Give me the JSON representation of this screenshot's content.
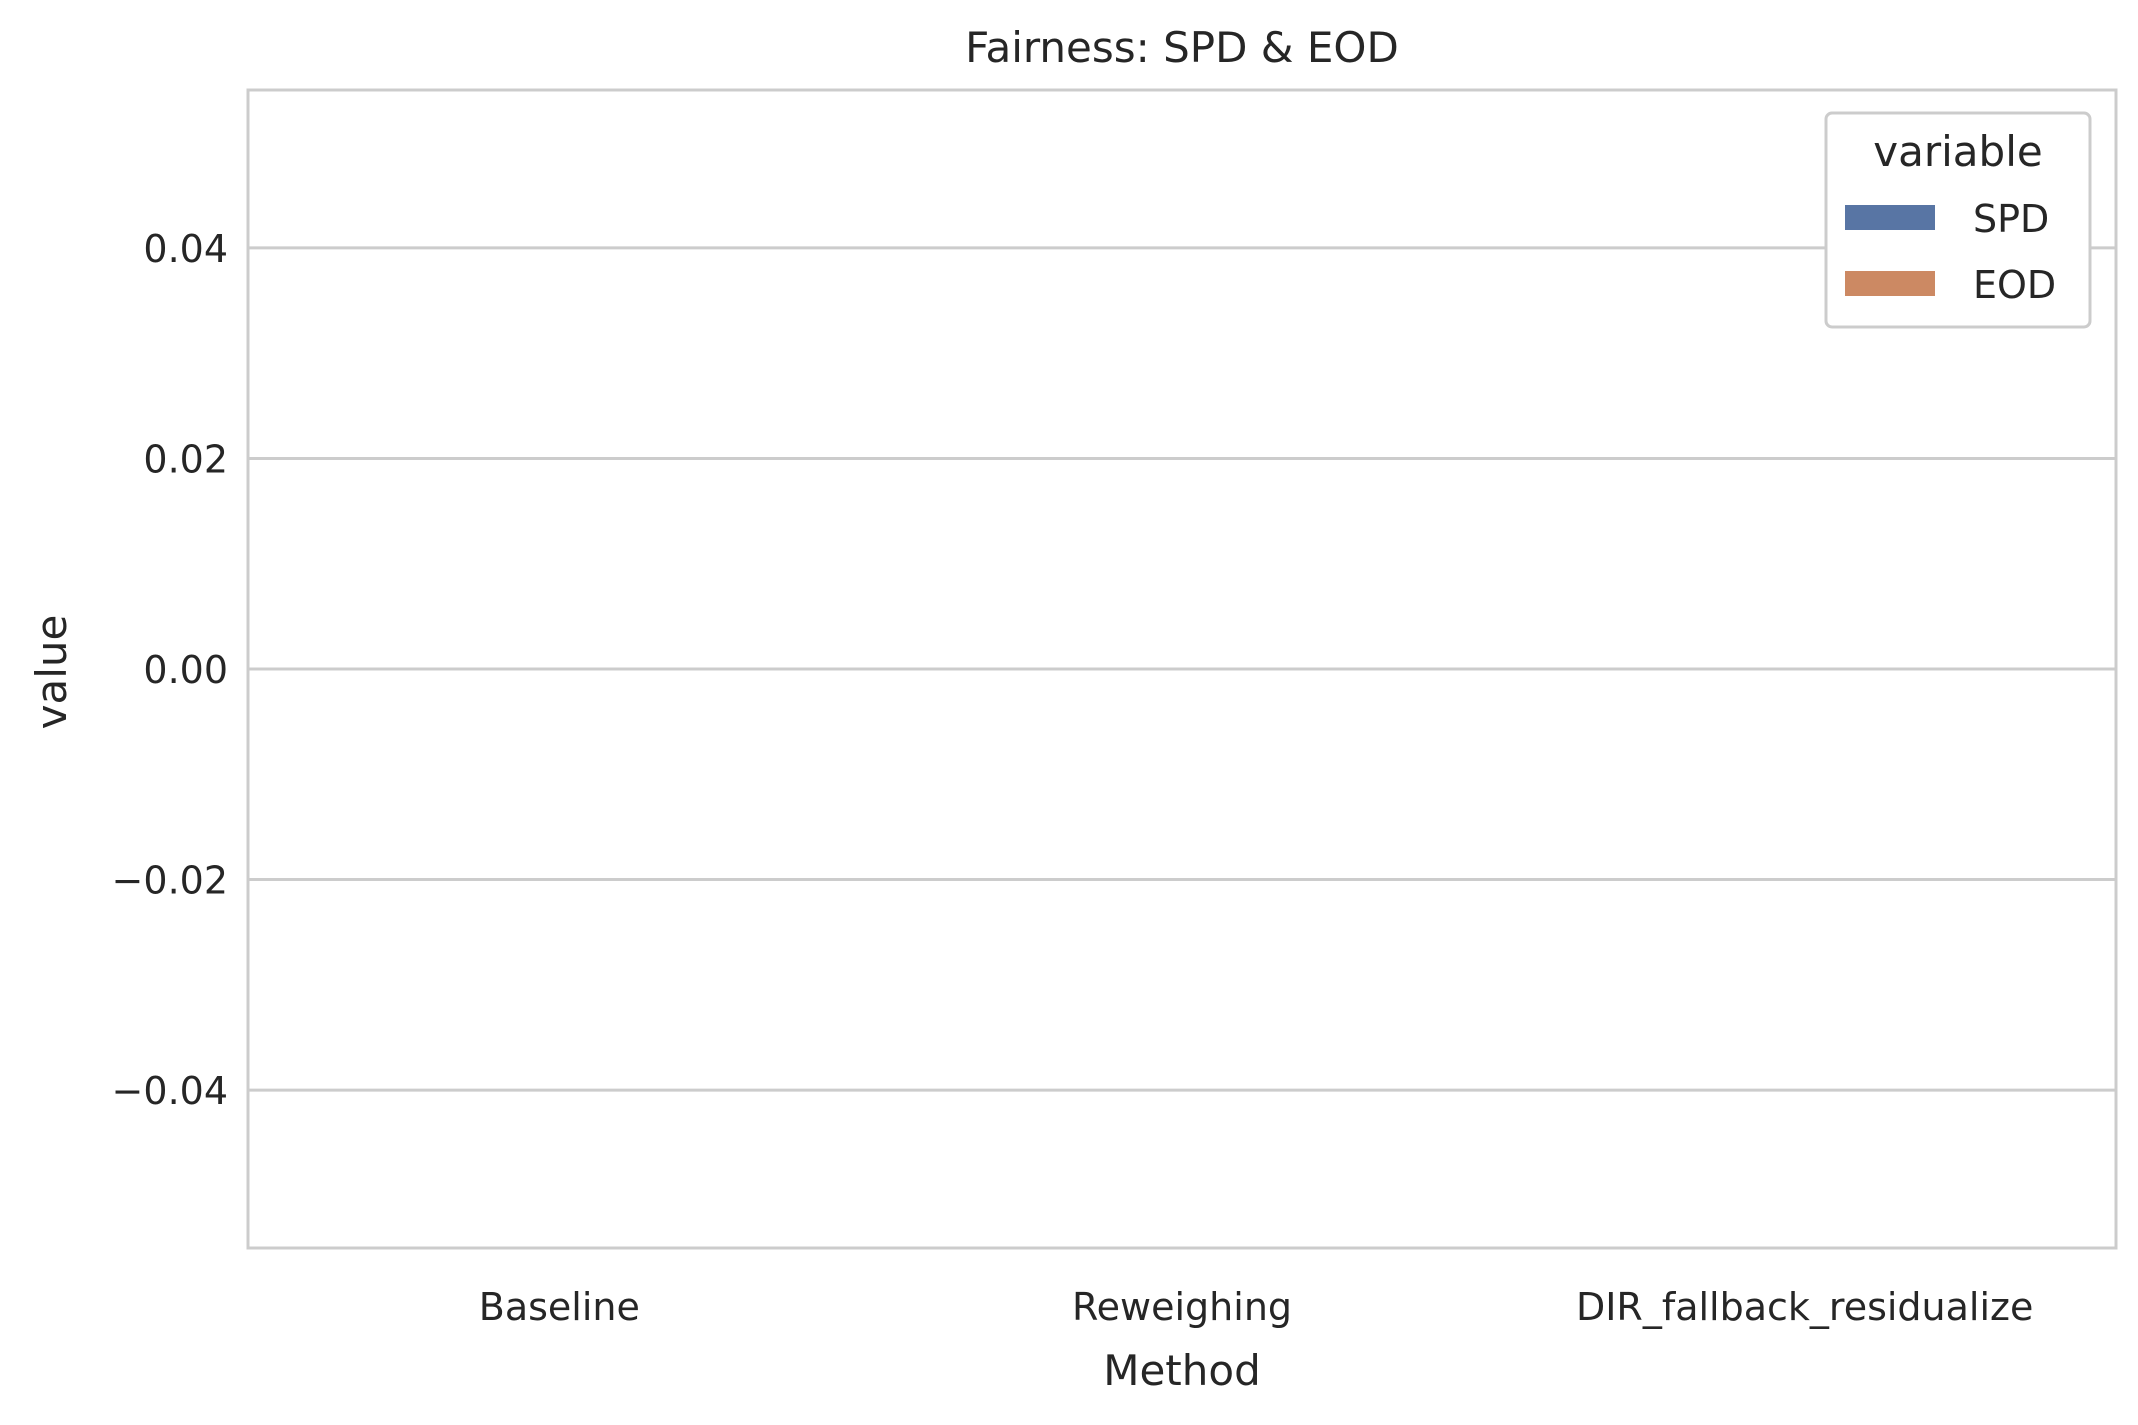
{
  "chart_data": {
    "type": "bar",
    "title": "Fairness: SPD & EOD",
    "xlabel": "Method",
    "ylabel": "value",
    "categories": [
      "Baseline",
      "Reweighing",
      "DIR_fallback_residualize"
    ],
    "series": [
      {
        "name": "SPD",
        "color": "#5875a4",
        "values": [
          0,
          0,
          0
        ]
      },
      {
        "name": "EOD",
        "color": "#cc8963",
        "values": [
          0,
          0,
          0
        ]
      }
    ],
    "ylim": [
      -0.055,
      0.055
    ],
    "yticks": [
      -0.04,
      -0.02,
      0.0,
      0.02,
      0.04
    ],
    "ytick_labels": [
      "−0.04",
      "−0.02",
      "0.00",
      "0.02",
      "0.04"
    ],
    "grid": true,
    "legend": {
      "title": "variable",
      "placement": "top-right"
    }
  }
}
